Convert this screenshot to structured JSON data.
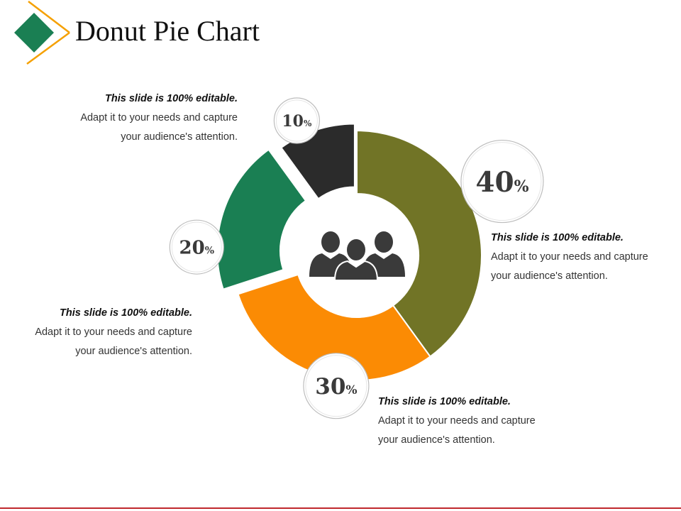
{
  "title": "Donut Pie Chart",
  "colors": {
    "slice_40": "#717426",
    "slice_30": "#fb8b04",
    "slice_20": "#1a7f53",
    "slice_10": "#2b2b2b",
    "logo_diamond": "#1a7f53",
    "logo_lines": "#f5a000",
    "bottom_rule": "#c0282d"
  },
  "center_icon": "people-group-icon",
  "chart_data": {
    "type": "pie",
    "donut": true,
    "title": "Donut Pie Chart",
    "slices": [
      {
        "label": "40%",
        "value": 40,
        "color": "#717426"
      },
      {
        "label": "30%",
        "value": 30,
        "color": "#fb8b04"
      },
      {
        "label": "20%",
        "value": 20,
        "color": "#1a7f53"
      },
      {
        "label": "10%",
        "value": 10,
        "color": "#2b2b2b"
      }
    ]
  },
  "badges": [
    {
      "number": "40",
      "unit": "%"
    },
    {
      "number": "30",
      "unit": "%"
    },
    {
      "number": "20",
      "unit": "%"
    },
    {
      "number": "10",
      "unit": "%"
    }
  ],
  "callouts": [
    {
      "heading": "This slide is 100% editable.",
      "line1": "Adapt it to your needs and capture",
      "line2": "your audience's attention."
    },
    {
      "heading": "This slide is 100% editable.",
      "line1": "Adapt it to your needs and capture",
      "line2": "your audience's attention."
    },
    {
      "heading": "This slide is 100% editable.",
      "line1": "Adapt it to your needs and capture",
      "line2": "your audience's attention."
    },
    {
      "heading": "This slide is 100% editable.",
      "line1": "Adapt it to your needs and capture",
      "line2": "your audience's attention."
    }
  ]
}
